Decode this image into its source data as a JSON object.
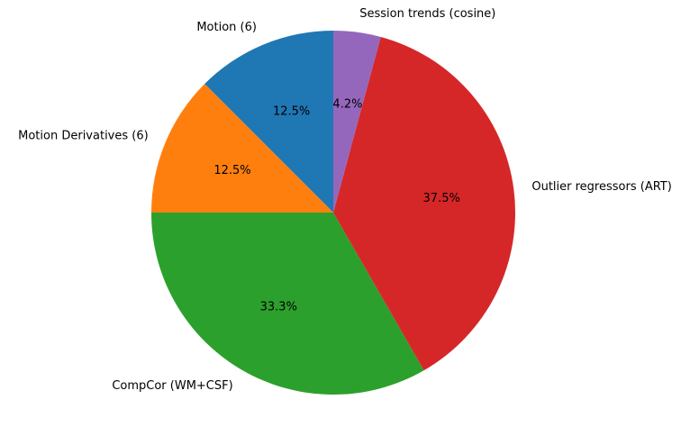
{
  "chart_data": {
    "type": "pie",
    "title": "",
    "start_angle": 90,
    "direction": "counterclockwise",
    "slices": [
      {
        "label": "Motion (6)",
        "value": 12.5,
        "pct_label": "12.5%",
        "color": "#1f77b4"
      },
      {
        "label": "Motion Derivatives (6)",
        "value": 12.5,
        "pct_label": "12.5%",
        "color": "#ff7f0e"
      },
      {
        "label": "CompCor (WM+CSF)",
        "value": 33.3,
        "pct_label": "33.3%",
        "color": "#2ca02c"
      },
      {
        "label": "Outlier regressors (ART)",
        "value": 37.5,
        "pct_label": "37.5%",
        "color": "#d62728"
      },
      {
        "label": "Session trends (cosine)",
        "value": 4.2,
        "pct_label": "4.2%",
        "color": "#9467bd"
      }
    ]
  }
}
